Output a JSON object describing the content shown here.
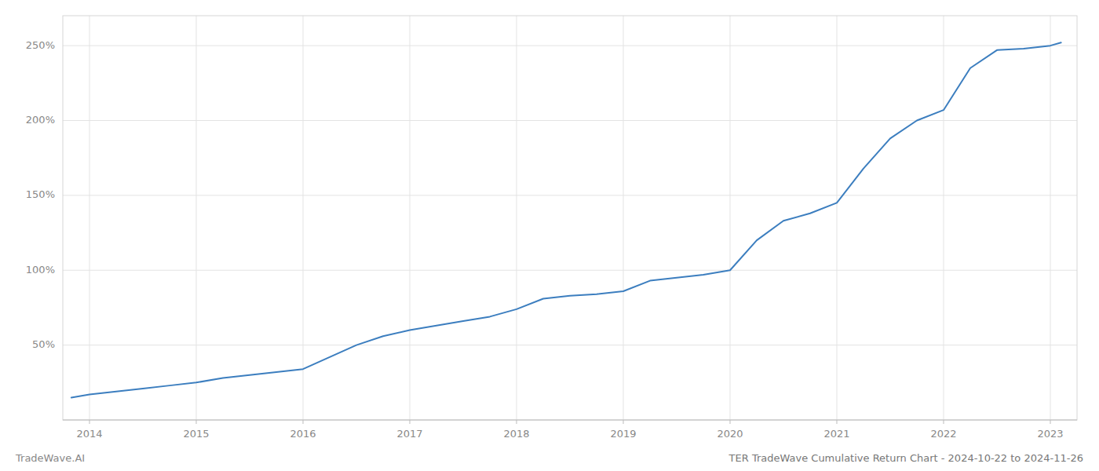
{
  "chart_data": {
    "type": "line",
    "title": "TER TradeWave Cumulative Return Chart - 2024-10-22 to 2024-11-26",
    "annotations": [
      "TradeWave.AI"
    ],
    "color": "#3c7ebf",
    "x": [
      2013.83,
      2014.0,
      2014.25,
      2014.5,
      2014.75,
      2015.0,
      2015.25,
      2015.5,
      2015.75,
      2016.0,
      2016.25,
      2016.5,
      2016.75,
      2017.0,
      2017.25,
      2017.5,
      2017.75,
      2018.0,
      2018.25,
      2018.5,
      2018.75,
      2019.0,
      2019.25,
      2019.5,
      2019.75,
      2020.0,
      2020.25,
      2020.5,
      2020.75,
      2021.0,
      2021.25,
      2021.5,
      2021.75,
      2022.0,
      2022.25,
      2022.5,
      2022.75,
      2023.0,
      2023.1
    ],
    "values": [
      15,
      17,
      19,
      21,
      23,
      25,
      28,
      30,
      32,
      34,
      42,
      50,
      56,
      60,
      63,
      66,
      69,
      74,
      81,
      83,
      84,
      86,
      93,
      95,
      97,
      100,
      120,
      133,
      138,
      145,
      168,
      188,
      200,
      207,
      235,
      247,
      248,
      250,
      252
    ],
    "xlim": [
      2013.75,
      2023.25
    ],
    "xticks": [
      2014,
      2015,
      2016,
      2017,
      2018,
      2019,
      2020,
      2021,
      2022,
      2023
    ],
    "ylim": [
      0,
      270
    ],
    "yticks": [
      {
        "value": 50,
        "label": "50%"
      },
      {
        "value": 100,
        "label": "100%"
      },
      {
        "value": 150,
        "label": "150%"
      },
      {
        "value": 200,
        "label": "200%"
      },
      {
        "value": 250,
        "label": "250%"
      }
    ],
    "grid": true
  }
}
